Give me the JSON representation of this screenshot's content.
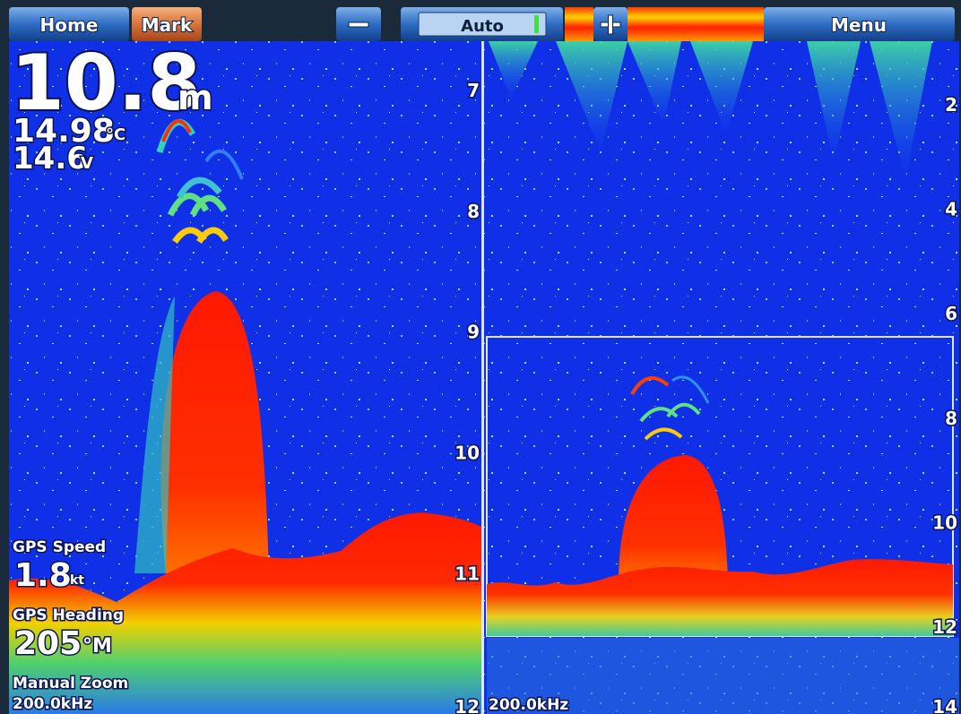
{
  "toolbar": {
    "home": "Home",
    "mark": "Mark",
    "gain": "Auto",
    "menu": "Menu"
  },
  "left_panel": {
    "depth": "10.8",
    "depth_unit": "m",
    "water_temp": "14.98",
    "temp_unit": "°C",
    "voltage": "14.6",
    "voltage_unit": "V",
    "gps_speed_label": "GPS Speed",
    "gps_speed": "1.8",
    "speed_unit": "kt",
    "gps_heading_label": "GPS Heading",
    "gps_heading": "205",
    "heading_unit": "°M",
    "zoom_mode": "Manual Zoom",
    "frequency": "200.0kHz",
    "depth_scale": [
      7,
      8,
      9,
      10,
      11,
      12
    ]
  },
  "right_panel": {
    "frequency": "200.0kHz",
    "depth_scale": [
      2,
      4,
      6,
      8,
      10,
      12,
      14
    ]
  }
}
